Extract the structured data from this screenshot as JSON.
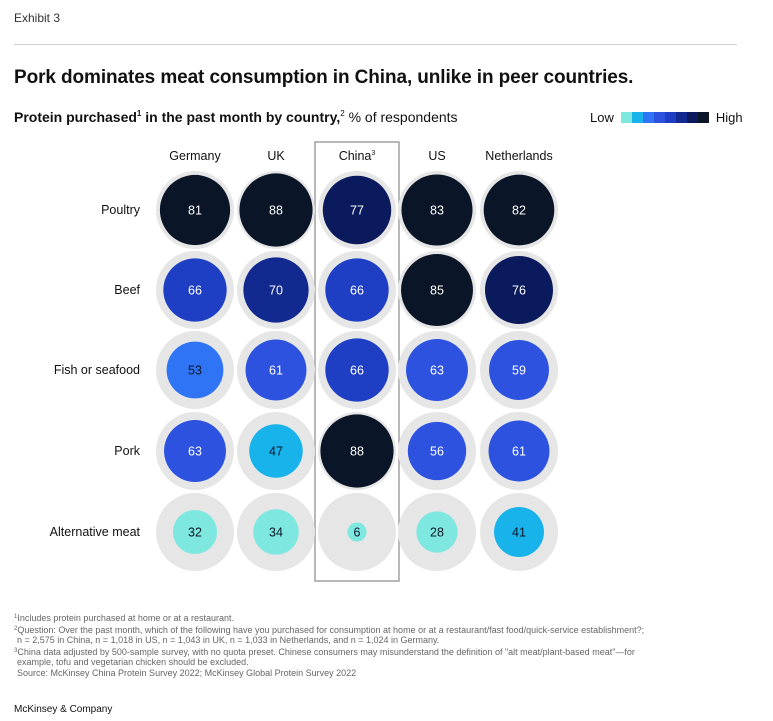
{
  "exhibit_label": "Exhibit 3",
  "title": "Pork dominates meat consumption in China, unlike in peer countries.",
  "subtitle": {
    "bold_part": "Protein purchased",
    "sup1": "1",
    "bold_part2": " in the past month by country,",
    "sup2": "2",
    "rest": " % of respondents"
  },
  "legend": {
    "low": "Low",
    "high": "High",
    "colors": [
      "#7ee8e0",
      "#17b3ea",
      "#2f74f5",
      "#2d52e0",
      "#1e3fc4",
      "#122a8f",
      "#0a1a5c",
      "#0a1628"
    ]
  },
  "chart_data": {
    "type": "bubble-matrix",
    "columns": [
      "Germany",
      "UK",
      "China",
      "US",
      "Netherlands"
    ],
    "column_superscripts": [
      "",
      "",
      "3",
      "",
      ""
    ],
    "highlighted_column": "China",
    "rows": [
      "Poultry",
      "Beef",
      "Fish or seafood",
      "Pork",
      "Alternative meat"
    ],
    "values": [
      [
        81,
        88,
        77,
        83,
        82
      ],
      [
        66,
        70,
        66,
        85,
        76
      ],
      [
        53,
        61,
        66,
        63,
        59
      ],
      [
        63,
        47,
        88,
        56,
        61
      ],
      [
        32,
        34,
        6,
        28,
        41
      ]
    ],
    "max_value": 100,
    "unit": "% of respondents",
    "colors": {
      "background_circle": "#e6e6e6",
      "scale_low": "#7ee8e0",
      "scale_mid": "#2f74f5",
      "scale_high": "#0a1628"
    }
  },
  "footnotes": {
    "note1": "Includes protein purchased at home or at a restaurant.",
    "note2_line1": "Question: Over the past month, which of the following have you purchased for consumption at home or at a restaurant/fast food/quick-service establishment?;",
    "note2_line2": "n = 2,575 in China, n = 1,018 in US, n = 1,043 in UK, n = 1,033 in Netherlands, and n = 1,024 in Germany.",
    "note3_line1": "China data adjusted by 500-sample survey, with no quota preset. Chinese consumers may misunderstand the definition of \"alt meat/plant-based meat\"—for",
    "note3_line2": "example, tofu and vegetarian chicken should be excluded.",
    "source": "Source: McKinsey China Protein Survey 2022; McKinsey Global Protein Survey 2022"
  },
  "brand": "McKinsey & Company"
}
